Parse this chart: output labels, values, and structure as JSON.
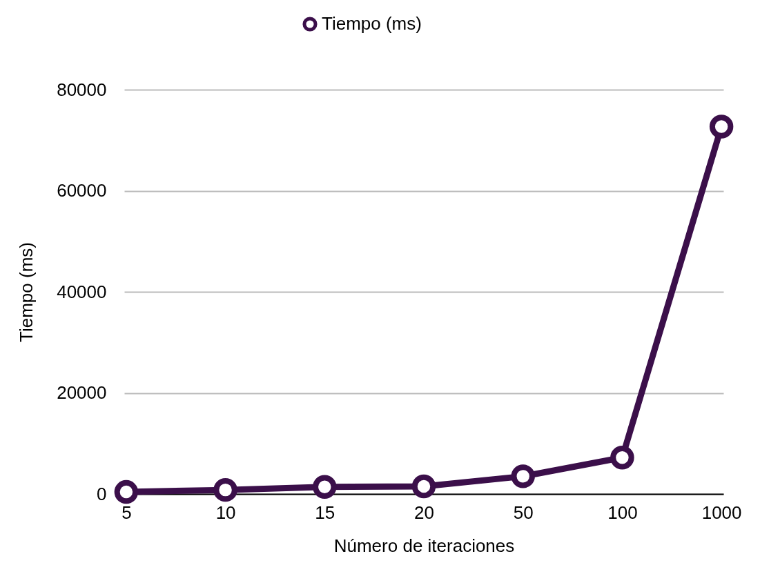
{
  "chart_data": {
    "type": "line",
    "xlabel": "Número de iteraciones",
    "ylabel": "Tiempo (ms)",
    "categories": [
      "5",
      "10",
      "15",
      "20",
      "50",
      "100",
      "1000"
    ],
    "series": [
      {
        "name": "Tiempo (ms)",
        "color": "#3b0f4a",
        "values": [
          400,
          800,
          1400,
          1500,
          3500,
          7200,
          72700
        ]
      }
    ],
    "ylim": [
      0,
      80000
    ],
    "yticks": [
      0,
      20000,
      40000,
      60000,
      80000
    ],
    "grid": "y",
    "legend": "top",
    "marker": "circle",
    "line_style": "solid"
  }
}
